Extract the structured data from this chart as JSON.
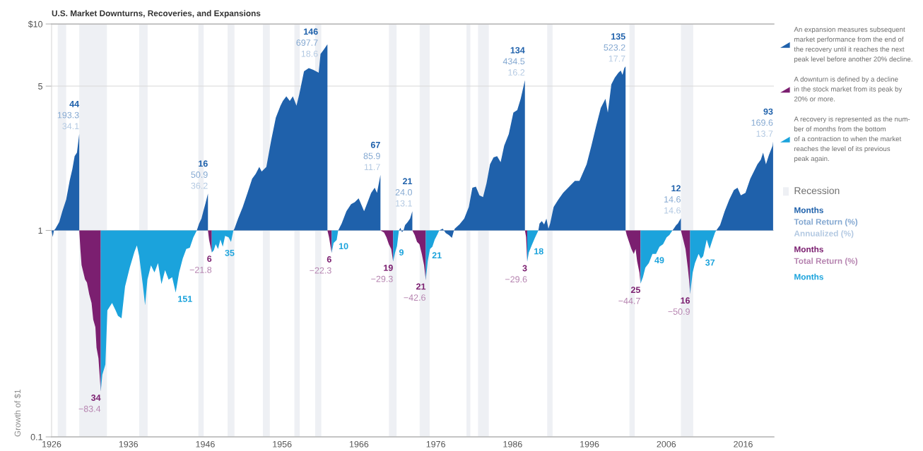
{
  "chart_data": {
    "type": "area",
    "title": "U.S. Market Downturns, Recoveries, and Expansions",
    "ylabel": "Growth of $1",
    "log": true,
    "xlim": [
      1926,
      2020
    ],
    "ylim": [
      0.1,
      10
    ],
    "xticks": [
      1926,
      1936,
      1946,
      1956,
      1966,
      1976,
      1986,
      1996,
      2006,
      2016
    ],
    "yticks": [
      {
        "value": 10,
        "label": "$10"
      },
      5,
      1,
      0.1
    ],
    "grid": "y",
    "legend": "right",
    "series": [
      {
        "name": "An expansion measures subsequent\nmarket performance from the end of\nthe recovery until it reaches the next\npeak level before another 20% decline.",
        "color": "#1f61ab",
        "x": [
          1926.0,
          1926.15,
          1926.3,
          1926.5,
          1927.0,
          1927.4,
          1927.9,
          1928.35,
          1928.7,
          1929.0,
          1929.3,
          1929.6,
          1937.0,
          1944.9,
          1945.2,
          1945.5,
          1945.75,
          1946.0,
          1946.35,
          1948.0,
          1949.66,
          1949.8,
          1950.27,
          1950.88,
          1951.5,
          1952.1,
          1952.57,
          1953.03,
          1953.34,
          1953.95,
          1954.56,
          1955.18,
          1955.79,
          1956.1,
          1956.55,
          1957.0,
          1957.4,
          1957.87,
          1958.24,
          1958.85,
          1959.47,
          1960.07,
          1960.76,
          1961.0,
          1961.46,
          1961.9,
          1962.6,
          1963.3,
          1963.75,
          1964.37,
          1964.98,
          1965.45,
          1965.96,
          1966.67,
          1967.13,
          1967.59,
          1968.05,
          1968.35,
          1968.8,
          1970.0,
          1971.2,
          1971.4,
          1971.6,
          1971.8,
          1972.0,
          1972.35,
          1972.65,
          1972.95,
          1974.7,
          1976.45,
          1976.9,
          1977.3,
          1977.7,
          1978.1,
          1978.3,
          1978.47,
          1979.08,
          1979.7,
          1980.3,
          1980.76,
          1981.22,
          1981.68,
          1982.15,
          1982.6,
          1983.06,
          1983.52,
          1983.98,
          1984.44,
          1984.9,
          1985.5,
          1986.1,
          1986.6,
          1987.05,
          1987.6,
          1988.5,
          1989.35,
          1989.5,
          1989.8,
          1990.1,
          1990.4,
          1990.66,
          1990.88,
          1991.34,
          1991.95,
          1992.57,
          1993.49,
          1994.1,
          1994.7,
          1995.63,
          1996.25,
          1996.85,
          1997.47,
          1998.08,
          1998.39,
          1998.85,
          1999.3,
          1999.77,
          2000.07,
          2000.3,
          2000.53,
          2000.7,
          2003.7,
          2006.8,
          2006.97,
          2007.28,
          2007.5,
          2007.68,
          2007.9,
          2010.0,
          2012.5,
          2013.0,
          2013.6,
          2014.2,
          2014.8,
          2015.27,
          2015.7,
          2016.3,
          2016.93,
          2017.86,
          2018.3,
          2018.6,
          2018.97,
          2019.36,
          2019.83,
          2019.9
        ],
        "values": [
          1.0,
          0.93,
          1.0,
          1.02,
          1.1,
          1.24,
          1.41,
          1.74,
          1.98,
          2.29,
          2.38,
          2.933,
          null,
          1.0,
          1.08,
          1.14,
          1.24,
          1.34,
          1.509,
          null,
          1.0,
          1.02,
          1.14,
          1.3,
          1.52,
          1.78,
          1.88,
          2.03,
          1.93,
          2.03,
          2.71,
          3.52,
          4.02,
          4.24,
          4.46,
          4.24,
          4.46,
          4.02,
          4.58,
          5.9,
          6.12,
          6.0,
          5.81,
          7.15,
          7.55,
          7.977,
          null,
          1.0,
          1.08,
          1.24,
          1.34,
          1.37,
          1.43,
          1.24,
          1.37,
          1.52,
          1.61,
          1.52,
          1.859,
          null,
          1.0,
          1.03,
          0.98,
          1.0,
          1.06,
          1.1,
          1.14,
          1.24,
          null,
          1.0,
          1.02,
          0.97,
          0.95,
          0.92,
          0.98,
          1.02,
          1.07,
          1.14,
          1.3,
          1.61,
          1.63,
          1.48,
          1.45,
          1.69,
          2.09,
          2.26,
          2.29,
          2.14,
          2.57,
          2.93,
          3.72,
          3.83,
          4.34,
          5.345,
          null,
          1.0,
          1.08,
          1.11,
          1.07,
          1.14,
          1.02,
          1.08,
          1.3,
          1.41,
          1.52,
          1.65,
          1.74,
          1.74,
          2.09,
          2.57,
          3.18,
          3.92,
          4.34,
          3.72,
          5.1,
          5.5,
          5.81,
          5.95,
          5.67,
          6.12,
          6.232,
          null,
          1.0,
          1.02,
          1.06,
          1.08,
          1.11,
          1.146,
          null,
          1.0,
          1.06,
          1.24,
          1.41,
          1.57,
          1.61,
          1.48,
          1.52,
          1.78,
          2.09,
          2.2,
          2.38,
          2.09,
          2.32,
          2.57,
          2.696
        ]
      },
      {
        "name": "A downturn is defined by a decline\nin the stock market from its peak by\n20% or more.",
        "color": "#7b1f70",
        "x": [
          1929.6,
          1929.75,
          1929.9,
          1930.35,
          1930.6,
          1930.9,
          1931.2,
          1931.42,
          1931.7,
          1931.85,
          1932.1,
          1932.4,
          1939.0,
          1946.35,
          1946.5,
          1946.85,
          1954.0,
          1961.9,
          1962.1,
          1962.45,
          1965.6,
          1968.8,
          1969.27,
          1969.58,
          1969.89,
          1970.2,
          1970.45,
          1971.7,
          1972.95,
          1973.26,
          1973.56,
          1973.87,
          1974.18,
          1974.48,
          1974.7,
          1981.2,
          1987.6,
          1987.75,
          1987.9,
          1994.3,
          2000.7,
          2000.85,
          2001.15,
          2001.46,
          2001.77,
          2002.0,
          2002.2,
          2002.5,
          2002.65,
          2005.3,
          2007.9,
          2008.2,
          2008.5,
          2008.8,
          2008.96,
          2009.1,
          2009.1
        ],
        "values": [
          1.0,
          0.81,
          0.68,
          0.58,
          0.56,
          0.49,
          0.445,
          0.37,
          0.34,
          0.27,
          0.24,
          0.166,
          null,
          1.0,
          0.9,
          0.782,
          null,
          1.0,
          0.93,
          0.777,
          null,
          1.0,
          0.977,
          0.927,
          0.857,
          0.813,
          0.707,
          null,
          1.0,
          0.95,
          0.88,
          0.857,
          0.77,
          0.677,
          0.574,
          null,
          1.0,
          0.93,
          0.704,
          null,
          1.0,
          0.95,
          0.88,
          0.813,
          0.77,
          0.813,
          0.71,
          0.625,
          0.553,
          null,
          1.0,
          0.903,
          0.813,
          0.66,
          0.578,
          0.491,
          1.0
        ]
      },
      {
        "name": "A recovery is represented as the num-\nber of months from the bottom\nof a contraction to when the market\nreaches the level of its previous\npeak again.",
        "color": "#1ba3dc",
        "x": [
          1932.4,
          1932.4,
          1932.6,
          1933.0,
          1933.26,
          1933.87,
          1934.33,
          1934.64,
          1935.1,
          1935.56,
          1936.17,
          1936.79,
          1937.1,
          1937.4,
          1937.86,
          1938.17,
          1938.47,
          1938.93,
          1939.39,
          1939.85,
          1940.3,
          1940.77,
          1941.23,
          1941.69,
          1942.15,
          1942.6,
          1943.07,
          1943.53,
          1943.99,
          1944.45,
          1944.9,
          1945.9,
          1946.85,
          1947.1,
          1947.36,
          1947.66,
          1947.97,
          1948.28,
          1948.58,
          1949.04,
          1949.35,
          1949.66,
          1955.0,
          1962.45,
          1962.7,
          1963.1,
          1963.3,
          1966.0,
          1970.45,
          1970.7,
          1970.95,
          1971.2,
          1973.0,
          1974.7,
          1974.95,
          1975.25,
          1975.56,
          1975.86,
          1976.17,
          1976.45,
          1982.0,
          1987.9,
          1988.1,
          1988.5,
          1988.9,
          1989.35,
          1995.0,
          2002.65,
          2002.96,
          2003.27,
          2003.73,
          2004.2,
          2004.66,
          2005.12,
          2005.58,
          2006.04,
          2006.4,
          2006.8,
          2008.0,
          2009.1,
          2009.43,
          2009.73,
          2010.2,
          2010.5,
          2010.8,
          2011.26,
          2011.63,
          2012.02,
          2012.34,
          2012.5
        ],
        "values": [
          1.0,
          0.166,
          0.2,
          0.224,
          0.41,
          0.445,
          0.41,
          0.386,
          0.375,
          0.535,
          0.66,
          0.79,
          0.846,
          0.75,
          0.55,
          0.434,
          0.578,
          0.677,
          0.626,
          0.695,
          0.55,
          0.642,
          0.578,
          0.594,
          0.5,
          0.626,
          0.731,
          0.813,
          0.824,
          0.927,
          1.0,
          null,
          0.782,
          0.8,
          0.857,
          0.813,
          0.903,
          0.835,
          0.94,
          0.927,
          0.88,
          1.0,
          null,
          0.777,
          0.87,
          0.9,
          1.0,
          null,
          0.707,
          0.78,
          0.84,
          1.0,
          null,
          0.574,
          0.71,
          0.813,
          0.835,
          0.903,
          0.95,
          1.0,
          null,
          0.704,
          0.78,
          0.85,
          0.92,
          1.0,
          null,
          0.553,
          0.594,
          0.66,
          0.695,
          0.77,
          0.77,
          0.835,
          0.857,
          0.927,
          0.95,
          1.0,
          null,
          0.491,
          0.625,
          0.695,
          0.77,
          0.73,
          0.75,
          0.903,
          0.813,
          0.903,
          0.977,
          1.0
        ]
      }
    ],
    "bands": [
      {
        "axis": "x",
        "from": 1926.8,
        "to": 1927.9,
        "color": "#eef0f4"
      },
      {
        "axis": "x",
        "from": 1929.6,
        "to": 1933.2,
        "color": "#eef0f4"
      },
      {
        "axis": "x",
        "from": 1937.4,
        "to": 1938.5,
        "color": "#eef0f4"
      },
      {
        "axis": "x",
        "from": 1945.1,
        "to": 1945.8,
        "color": "#eef0f4"
      },
      {
        "axis": "x",
        "from": 1948.9,
        "to": 1949.8,
        "color": "#eef0f4"
      },
      {
        "axis": "x",
        "from": 1953.5,
        "to": 1954.4,
        "color": "#eef0f4"
      },
      {
        "axis": "x",
        "from": 1957.6,
        "to": 1958.3,
        "color": "#eef0f4"
      },
      {
        "axis": "x",
        "from": 1960.3,
        "to": 1961.1,
        "color": "#eef0f4"
      },
      {
        "axis": "x",
        "from": 1969.9,
        "to": 1970.9,
        "color": "#eef0f4"
      },
      {
        "axis": "x",
        "from": 1973.9,
        "to": 1975.2,
        "color": "#eef0f4"
      },
      {
        "axis": "x",
        "from": 1980.0,
        "to": 1980.5,
        "color": "#eef0f4"
      },
      {
        "axis": "x",
        "from": 1981.5,
        "to": 1982.9,
        "color": "#eef0f4"
      },
      {
        "axis": "x",
        "from": 1990.5,
        "to": 1991.2,
        "color": "#eef0f4"
      },
      {
        "axis": "x",
        "from": 2001.2,
        "to": 2001.9,
        "color": "#eef0f4"
      },
      {
        "axis": "x",
        "from": 2007.9,
        "to": 2009.5,
        "color": "#eef0f4"
      }
    ],
    "annotations": [
      {
        "text": "44\n193.3\n34.1",
        "x": 1929.6,
        "y": 2.933
      },
      {
        "text": "16\n50.9\n36.2",
        "x": 1946.35,
        "y": 1.509
      },
      {
        "text": "146\n697.7\n18.6",
        "x": 1961.9,
        "y": 7.977
      },
      {
        "text": "67\n85.9\n11.7",
        "x": 1968.8,
        "y": 1.859
      },
      {
        "text": "21\n24.0\n13.1",
        "x": 1972.95,
        "y": 1.24
      },
      {
        "text": "134\n434.5\n16.2",
        "x": 1987.6,
        "y": 5.345
      },
      {
        "text": "135\n523.2\n17.7",
        "x": 2000.7,
        "y": 6.232
      },
      {
        "text": "12\n14.6\n14.6",
        "x": 2007.9,
        "y": 1.146
      },
      {
        "text": "93\n169.6\n13.7",
        "x": 2019.9,
        "y": 2.696
      },
      {
        "text": "34\n−83.4",
        "x": 1932.4,
        "y": 0.166
      },
      {
        "text": "6\n−21.8",
        "x": 1946.85,
        "y": 0.782
      },
      {
        "text": "6\n−22.3",
        "x": 1962.45,
        "y": 0.777
      },
      {
        "text": "19\n−29.3",
        "x": 1970.45,
        "y": 0.707
      },
      {
        "text": "21\n−42.6",
        "x": 1974.7,
        "y": 0.574
      },
      {
        "text": "3\n−29.6",
        "x": 1987.9,
        "y": 0.704
      },
      {
        "text": "25\n−44.7",
        "x": 2002.65,
        "y": 0.553
      },
      {
        "text": "16\n−50.9",
        "x": 2009.1,
        "y": 0.491
      },
      {
        "text": "151",
        "x": 1942.15,
        "y": 0.5
      },
      {
        "text": "35",
        "x": 1948.28,
        "y": 0.835
      },
      {
        "text": "10",
        "x": 1963.1,
        "y": 0.9
      },
      {
        "text": "9",
        "x": 1970.95,
        "y": 0.84
      },
      {
        "text": "21",
        "x": 1975.25,
        "y": 0.813
      },
      {
        "text": "18",
        "x": 1988.5,
        "y": 0.85
      },
      {
        "text": "49",
        "x": 2004.2,
        "y": 0.77
      },
      {
        "text": "37",
        "x": 2010.8,
        "y": 0.75
      },
      "Recession",
      "Months\nTotal Return (%)\nAnnualized (%)",
      "Months\nTotal Return (%)",
      "Months"
    ]
  }
}
